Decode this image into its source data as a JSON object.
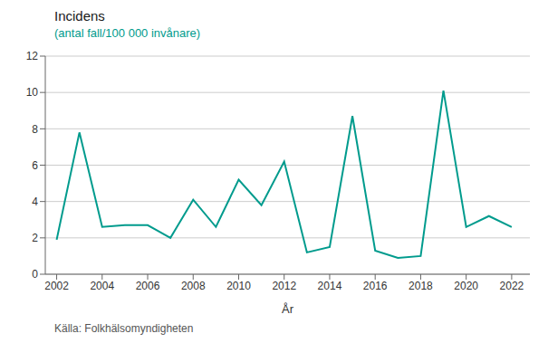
{
  "chart_data": {
    "type": "line",
    "title": "Incidens",
    "subtitle": "(antal fall/100 000 invånare)",
    "xlabel": "År",
    "source": "Källa: Folkhälsomyndigheten",
    "x": [
      2002,
      2003,
      2004,
      2005,
      2006,
      2007,
      2008,
      2009,
      2010,
      2011,
      2012,
      2013,
      2014,
      2015,
      2016,
      2017,
      2018,
      2019,
      2020,
      2021,
      2022
    ],
    "values": [
      1.9,
      7.8,
      2.6,
      2.7,
      2.7,
      2.0,
      4.1,
      2.6,
      5.2,
      3.8,
      6.2,
      1.2,
      1.5,
      8.7,
      1.3,
      0.9,
      1.0,
      10.1,
      2.6,
      3.2,
      2.6
    ],
    "color": "#009B8D",
    "xlim": [
      2001.5,
      2022.8
    ],
    "ylim": [
      0,
      12
    ],
    "xticks": [
      2002,
      2004,
      2006,
      2008,
      2010,
      2012,
      2014,
      2016,
      2018,
      2020,
      2022
    ],
    "yticks": [
      0,
      2,
      4,
      6,
      8,
      10,
      12
    ],
    "grid": true
  }
}
